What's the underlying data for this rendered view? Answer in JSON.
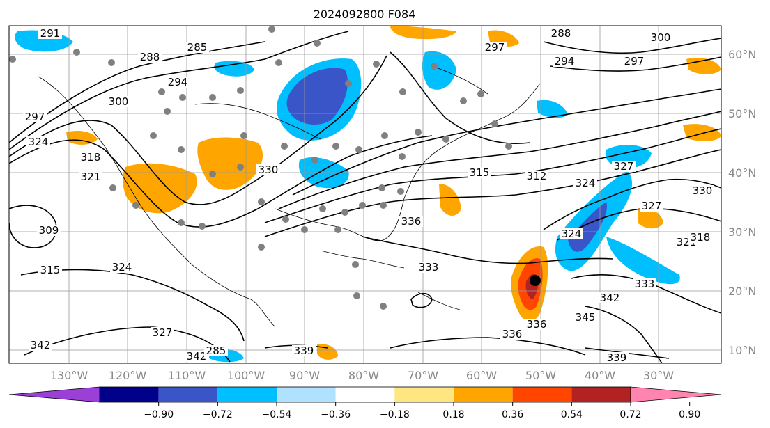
{
  "title": "2024092800 F084",
  "lat_labels": [
    "60°N",
    "50°N",
    "40°N",
    "30°N",
    "20°N",
    "10°N"
  ],
  "lon_labels": [
    "130°W",
    "120°W",
    "110°W",
    "100°W",
    "90°W",
    "80°W",
    "70°W",
    "60°W",
    "50°W",
    "40°W",
    "30°W"
  ],
  "colorbar": {
    "ticks": [
      "−0.90",
      "−0.72",
      "−0.54",
      "−0.36",
      "−0.18",
      "0.18",
      "0.36",
      "0.54",
      "0.72",
      "0.90"
    ],
    "colors": [
      "#9b3fd6",
      "#00008b",
      "#3a55c8",
      "#00bfff",
      "#b0e2ff",
      "#ffffff",
      "#ffe680",
      "#ffa500",
      "#ff4500",
      "#b22222",
      "#ff85b0"
    ]
  },
  "contour_labels": [
    "291",
    "288",
    "285",
    "294",
    "300",
    "297",
    "324",
    "318",
    "321",
    "309",
    "315",
    "324",
    "327",
    "342",
    "342",
    "339",
    "288",
    "297",
    "294",
    "297",
    "300",
    "312",
    "315",
    "324",
    "327",
    "330",
    "327",
    "336",
    "333",
    "336",
    "342",
    "345",
    "339",
    "336",
    "333",
    "321",
    "318",
    "324",
    "285",
    "330"
  ],
  "legend": {}
}
